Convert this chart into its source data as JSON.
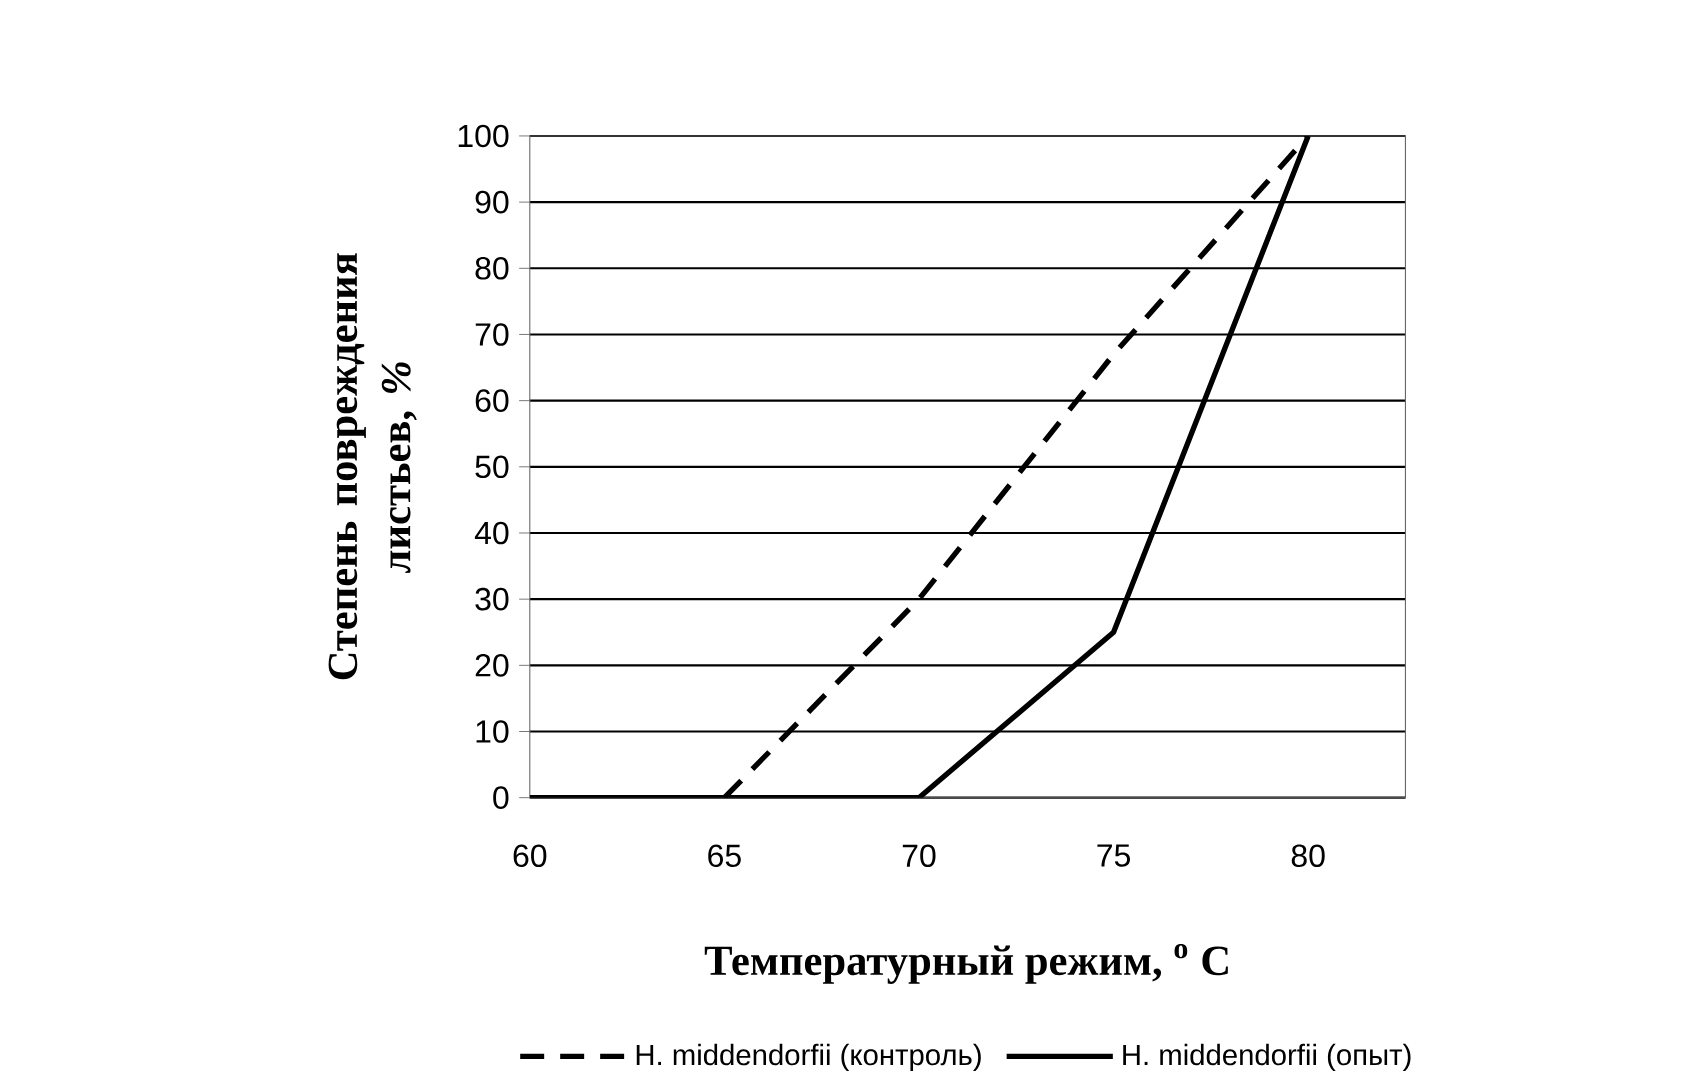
{
  "chart_data": {
    "type": "line",
    "xlabel": "Температурный режим, $^{o}$ С",
    "ylabel": "Степень повреждения листьев, *%*",
    "categories": [
      "60",
      "65",
      "70",
      "75",
      "80"
    ],
    "series": [
      {
        "name": "H. middendorfii (контроль)",
        "color": "#000000",
        "line_style": "dashed",
        "values": [
          null,
          0,
          30,
          67,
          100
        ]
      },
      {
        "name": "H. middendorfii (опыт)",
        "color": "#000000",
        "line_style": "solid",
        "values": [
          0,
          0,
          0,
          25,
          100
        ]
      }
    ],
    "ylim": [
      0,
      100
    ],
    "yticks": [
      0,
      10,
      20,
      30,
      40,
      50,
      60,
      70,
      80,
      90,
      100
    ],
    "grid": "y",
    "legend": "bottom",
    "marker": "none"
  }
}
